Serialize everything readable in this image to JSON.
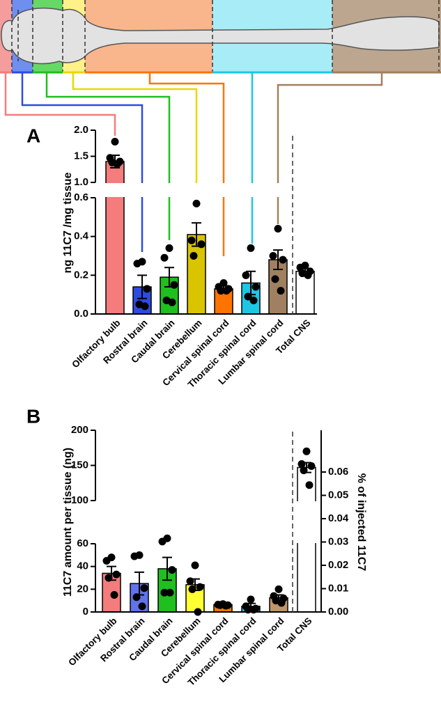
{
  "chart_data": [
    {
      "type": "bar",
      "panel_label": "A",
      "ylabel": "ng  11C7 /mg tissue",
      "categories": [
        "Olfactory bulb",
        "Rostral brain",
        "Caudal brain",
        "Cerebellum",
        "Cervical spinal cord",
        "Thoracic spinal cord",
        "Lumbar spinal cord",
        "Total CNS"
      ],
      "values": [
        1.4,
        0.14,
        0.19,
        0.41,
        0.13,
        0.16,
        0.28,
        0.22
      ],
      "errors": [
        0.12,
        0.06,
        0.05,
        0.06,
        0.015,
        0.06,
        0.05,
        0.015
      ],
      "points": [
        [
          1.78,
          1.47,
          1.4,
          1.38,
          1.36
        ],
        [
          0.27,
          0.26,
          0.13,
          0.05,
          0.04
        ],
        [
          0.34,
          0.29,
          0.15,
          0.07,
          0.06
        ],
        [
          0.57,
          0.38,
          0.36,
          0.3
        ],
        [
          0.16,
          0.14,
          0.13,
          0.12,
          0.12
        ],
        [
          0.34,
          0.2,
          0.14,
          0.09,
          0.07
        ],
        [
          0.44,
          0.3,
          0.28,
          0.18,
          0.12
        ],
        [
          0.25,
          0.24,
          0.22,
          0.21,
          0.2
        ]
      ],
      "colors": [
        "#f47c7c",
        "#2d4be0",
        "#1fbf1f",
        "#d9c400",
        "#ff7400",
        "#1ec6e6",
        "#a08060",
        "#ffffff"
      ],
      "y_segments": [
        {
          "ylim": [
            0,
            0.6
          ],
          "yticks": [
            {
              "value": 0,
              "label": "0.0"
            },
            0.2,
            0.4,
            0.6
          ]
        },
        {
          "ylim": [
            1,
            2
          ],
          "yticks": [
            {
              "value": 1,
              "label": "1.0"
            },
            1.5,
            {
              "value": 2,
              "label": "2.0"
            }
          ]
        }
      ]
    },
    {
      "type": "bar",
      "panel_label": "B",
      "ylabel": "11C7 amount per tissue (ng)",
      "y2label": "% of injected 11C7",
      "categories": [
        "Olfactory bulb",
        "Rostral brain",
        "Caudal brain",
        "Cerebellum",
        "Cervical spinal cord",
        "Thoracic spinal cord",
        "Lumbar spinal cord",
        "Total CNS"
      ],
      "values": [
        34,
        25,
        38,
        24,
        6.5,
        5,
        12.5,
        147
      ],
      "errors": [
        6,
        10,
        10,
        5,
        0.5,
        2.5,
        2.5,
        7
      ],
      "points": [
        [
          48,
          45,
          33,
          30,
          15
        ],
        [
          50,
          49,
          21,
          13,
          5
        ],
        [
          65,
          62,
          37,
          17,
          17
        ],
        [
          41,
          27,
          22,
          20,
          0
        ],
        [
          7,
          6.5,
          6,
          6,
          5.5
        ],
        [
          11,
          5,
          3,
          2,
          2
        ],
        [
          20,
          14,
          12,
          10,
          8
        ],
        [
          170,
          152,
          149,
          143,
          122
        ]
      ],
      "colors": [
        "#f47c7c",
        "#6272ea",
        "#1fbf1f",
        "#ffff33",
        "#ff7400",
        "#1ec6e6",
        "#c0956a",
        "#ffffff"
      ],
      "y_segments": [
        {
          "ylim": [
            0,
            60
          ],
          "yticks": [
            0,
            20,
            40,
            60
          ]
        },
        {
          "ylim": [
            100,
            200
          ],
          "yticks": [
            100,
            150,
            200
          ]
        }
      ],
      "y2lim": [
        0,
        0.06
      ],
      "y2ticks": [
        {
          "value": 0,
          "label": "0.00"
        },
        0.01,
        0.02,
        0.03,
        0.04,
        0.05,
        0.06
      ]
    }
  ]
}
